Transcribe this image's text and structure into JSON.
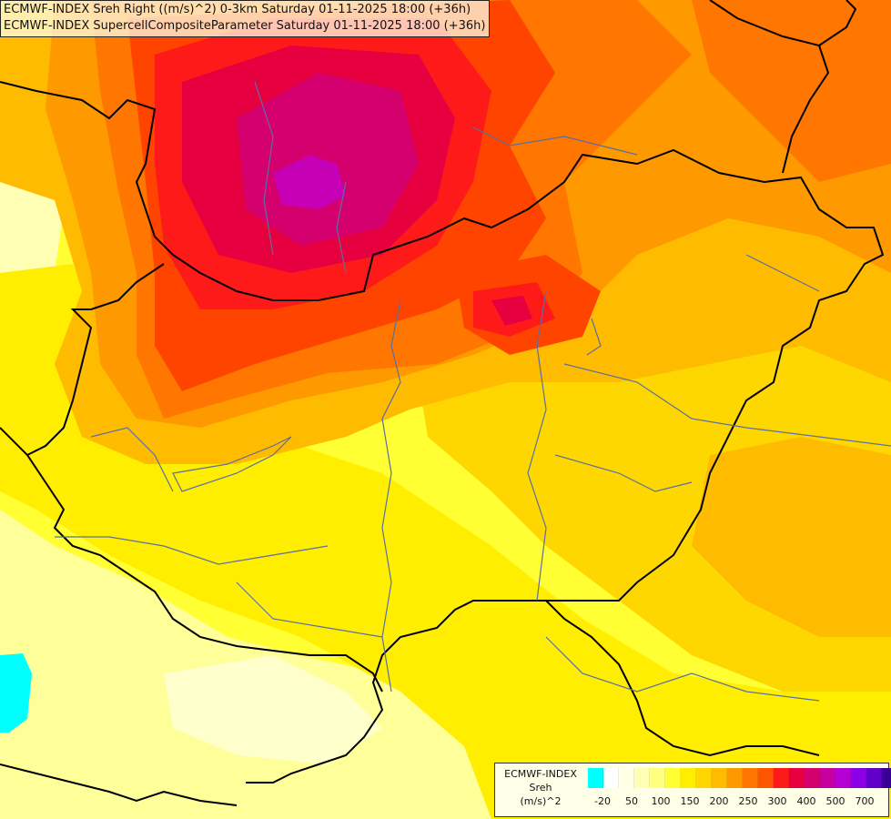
{
  "titles": [
    "ECMWF-INDEX Sreh Right ((m/s)^2) 0-3km Saturday 01-11-2025 18:00 (+36h)",
    "ECMWF-INDEX SupercellCompositeParameter Saturday 01-11-2025 18:00 (+36h)"
  ],
  "legend": {
    "line1": "ECMWF-INDEX",
    "line2": "Sreh",
    "line3": "(m/s)^2",
    "colors": [
      "#00ffff",
      "#ffffff",
      "#ffffe6",
      "#ffffb3",
      "#ffff80",
      "#ffff33",
      "#ffee00",
      "#ffd700",
      "#ffbb00",
      "#ff9900",
      "#ff7700",
      "#ff5500",
      "#ff1a1a",
      "#e60040",
      "#d4006e",
      "#c600a0",
      "#b400d2",
      "#8c00e6",
      "#6000c8",
      "#3a0096",
      "#00006e"
    ],
    "ticks": [
      "-20",
      "50",
      "100",
      "150",
      "200",
      "250",
      "300",
      "400",
      "500",
      "700"
    ]
  },
  "colors": {
    "background": "#ffff33",
    "light_yellow": "#ffff99",
    "yellow": "#ffee00",
    "gold": "#ffd700",
    "orange_light": "#ffbb00",
    "orange": "#ff9900",
    "orange_dark": "#ff7700",
    "red_orange": "#ff4400",
    "red": "#ff1a1a",
    "crimson": "#e60040",
    "magenta": "#d4006e",
    "purple": "#c600b4",
    "cyan": "#00ffff",
    "border": "#000000",
    "river": "#5a6fa0"
  }
}
